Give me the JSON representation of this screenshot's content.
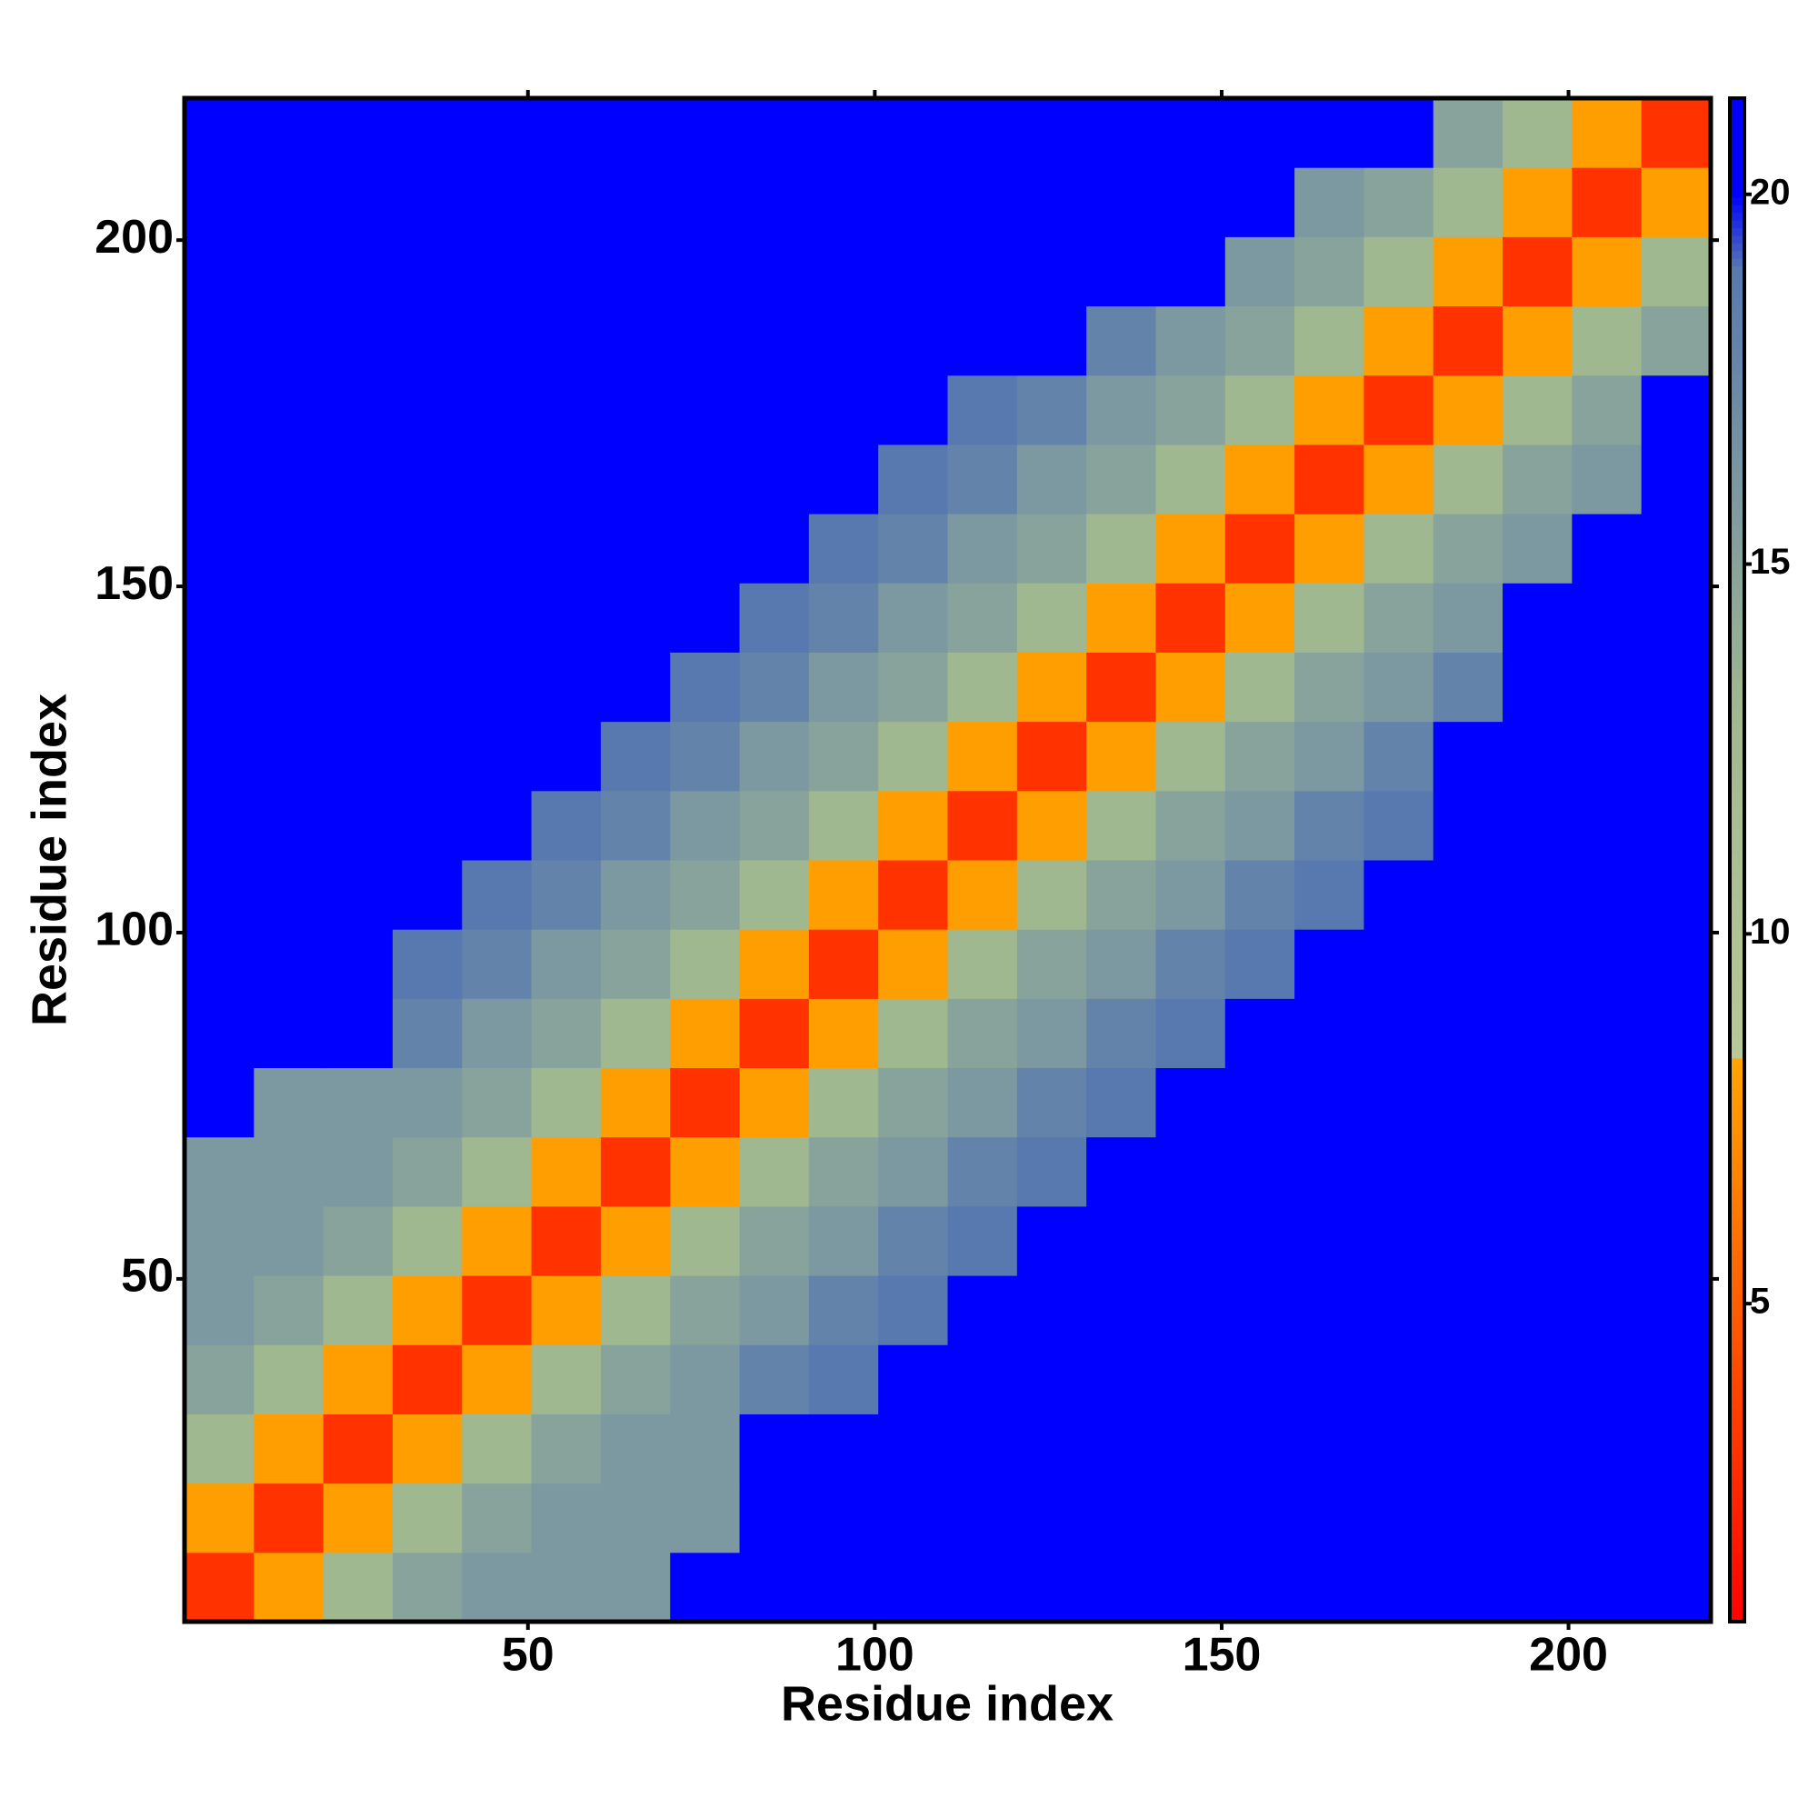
{
  "chart_data": {
    "type": "heatmap",
    "x_label": "Residue index",
    "y_label": "Residue index",
    "xbins": [
      0.5,
      10.5,
      20.5,
      30.5,
      40.5,
      50.5,
      60.5,
      70.5,
      80.5,
      90.5,
      100.5,
      110.5,
      120.5,
      130.5,
      140.5,
      150.5,
      160.5,
      170.5,
      180.5,
      190.5,
      200.5,
      210.5,
      220.5
    ],
    "ybins": [
      0.5,
      10.5,
      20.5,
      30.5,
      40.5,
      50.5,
      60.5,
      70.5,
      80.5,
      90.5,
      100.5,
      110.5,
      120.5,
      130.5,
      140.5,
      150.5,
      160.5,
      170.5,
      180.5,
      190.5,
      200.5,
      210.5,
      220.5
    ],
    "xlim": [
      0.5,
      220.5
    ],
    "ylim": [
      0.5,
      220.5
    ],
    "xticks": [
      50,
      100,
      150,
      200
    ],
    "yticks": [
      50,
      100,
      150,
      200
    ],
    "zlim": [
      0.7,
      21.3
    ],
    "zticks": [
      5,
      10,
      15,
      20
    ],
    "colorscale": [
      [
        0.7,
        "#ff0000"
      ],
      [
        8.3,
        "#ffa500"
      ],
      [
        8.31,
        "#b8c898"
      ],
      [
        13,
        "#a0b890"
      ],
      [
        19,
        "#5878b0"
      ],
      [
        20,
        "#0000ff"
      ]
    ],
    "z": [
      [
        3,
        8,
        13,
        15,
        16,
        16,
        16,
        21,
        21,
        21,
        21,
        21,
        21,
        21,
        21,
        21,
        21,
        21,
        21,
        21,
        21,
        21
      ],
      [
        8,
        3,
        8,
        13,
        15,
        16,
        16,
        16,
        21,
        21,
        21,
        21,
        21,
        21,
        21,
        21,
        21,
        21,
        21,
        21,
        21,
        21
      ],
      [
        13,
        8,
        3,
        8,
        13,
        15,
        16,
        16,
        21,
        21,
        21,
        21,
        21,
        21,
        21,
        21,
        21,
        21,
        21,
        21,
        21,
        21
      ],
      [
        15,
        13,
        8,
        3,
        8,
        13,
        15,
        16,
        18,
        19,
        21,
        21,
        21,
        21,
        21,
        21,
        21,
        21,
        21,
        21,
        21,
        21
      ],
      [
        16,
        15,
        13,
        8,
        3,
        8,
        13,
        15,
        16,
        18,
        19,
        21,
        21,
        21,
        21,
        21,
        21,
        21,
        21,
        21,
        21,
        21
      ],
      [
        16,
        16,
        15,
        13,
        8,
        3,
        8,
        13,
        15,
        16,
        18,
        19,
        21,
        21,
        21,
        21,
        21,
        21,
        21,
        21,
        21,
        21
      ],
      [
        16,
        16,
        16,
        15,
        13,
        8,
        3,
        8,
        13,
        15,
        16,
        18,
        19,
        21,
        21,
        21,
        21,
        21,
        21,
        21,
        21,
        21
      ],
      [
        21,
        16,
        16,
        16,
        15,
        13,
        8,
        3,
        8,
        13,
        15,
        16,
        18,
        19,
        21,
        21,
        21,
        21,
        21,
        21,
        21,
        21
      ],
      [
        21,
        21,
        21,
        18,
        16,
        15,
        13,
        8,
        3,
        8,
        13,
        15,
        16,
        18,
        19,
        21,
        21,
        21,
        21,
        21,
        21,
        21
      ],
      [
        21,
        21,
        21,
        19,
        18,
        16,
        15,
        13,
        8,
        3,
        8,
        13,
        15,
        16,
        18,
        19,
        21,
        21,
        21,
        21,
        21,
        21
      ],
      [
        21,
        21,
        21,
        21,
        19,
        18,
        16,
        15,
        13,
        8,
        3,
        8,
        13,
        15,
        16,
        18,
        19,
        21,
        21,
        21,
        21,
        21
      ],
      [
        21,
        21,
        21,
        21,
        21,
        19,
        18,
        16,
        15,
        13,
        8,
        3,
        8,
        13,
        15,
        16,
        18,
        19,
        21,
        21,
        21,
        21
      ],
      [
        21,
        21,
        21,
        21,
        21,
        21,
        19,
        18,
        16,
        15,
        13,
        8,
        3,
        8,
        13,
        15,
        16,
        18,
        21,
        21,
        21,
        21
      ],
      [
        21,
        21,
        21,
        21,
        21,
        21,
        21,
        19,
        18,
        16,
        15,
        13,
        8,
        3,
        8,
        13,
        15,
        16,
        18,
        21,
        21,
        21
      ],
      [
        21,
        21,
        21,
        21,
        21,
        21,
        21,
        21,
        19,
        18,
        16,
        15,
        13,
        8,
        3,
        8,
        13,
        15,
        16,
        21,
        21,
        21
      ],
      [
        21,
        21,
        21,
        21,
        21,
        21,
        21,
        21,
        21,
        19,
        18,
        16,
        15,
        13,
        8,
        3,
        8,
        13,
        15,
        16,
        21,
        21
      ],
      [
        21,
        21,
        21,
        21,
        21,
        21,
        21,
        21,
        21,
        21,
        19,
        18,
        16,
        15,
        13,
        8,
        3,
        8,
        13,
        15,
        16,
        21
      ],
      [
        21,
        21,
        21,
        21,
        21,
        21,
        21,
        21,
        21,
        21,
        21,
        19,
        18,
        16,
        15,
        13,
        8,
        3,
        8,
        13,
        15,
        21
      ],
      [
        21,
        21,
        21,
        21,
        21,
        21,
        21,
        21,
        21,
        21,
        21,
        21,
        21,
        18,
        16,
        15,
        13,
        8,
        3,
        8,
        13,
        15
      ],
      [
        21,
        21,
        21,
        21,
        21,
        21,
        21,
        21,
        21,
        21,
        21,
        21,
        21,
        21,
        21,
        16,
        15,
        13,
        8,
        3,
        8,
        13
      ],
      [
        21,
        21,
        21,
        21,
        21,
        21,
        21,
        21,
        21,
        21,
        21,
        21,
        21,
        21,
        21,
        21,
        16,
        15,
        13,
        8,
        3,
        8
      ],
      [
        21,
        21,
        21,
        21,
        21,
        21,
        21,
        21,
        21,
        21,
        21,
        21,
        21,
        21,
        21,
        21,
        21,
        21,
        15,
        13,
        8,
        3
      ]
    ]
  }
}
